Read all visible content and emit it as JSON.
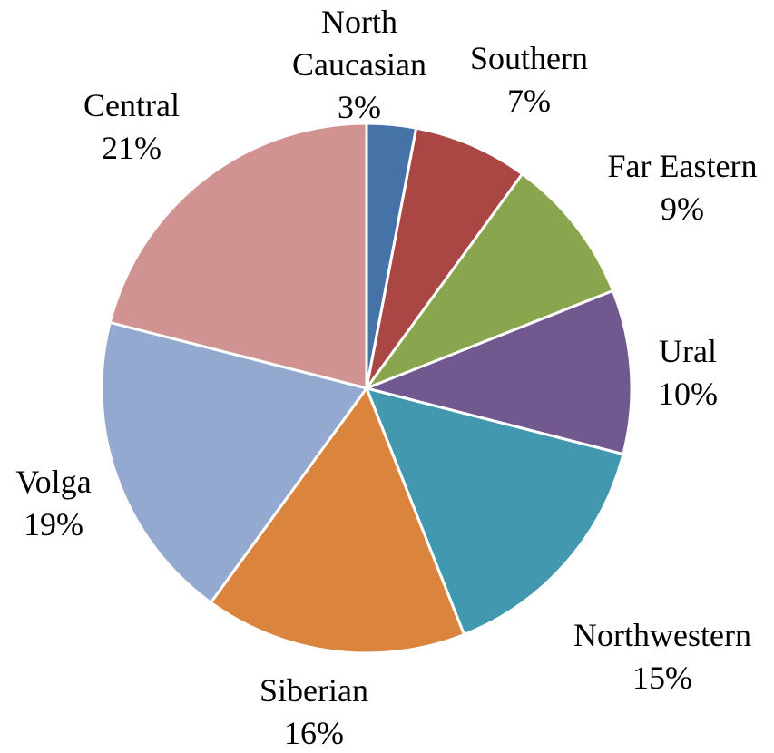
{
  "chart_data": {
    "type": "pie",
    "title": "",
    "slices": [
      {
        "label": "North Caucasian",
        "label_lines": [
          "North",
          "Caucasian"
        ],
        "value": 3,
        "display": "3%",
        "color": "#4572A7"
      },
      {
        "label": "Southern",
        "label_lines": [
          "Southern"
        ],
        "value": 7,
        "display": "7%",
        "color": "#AA4643"
      },
      {
        "label": "Far Eastern",
        "label_lines": [
          "Far Eastern"
        ],
        "value": 9,
        "display": "9%",
        "color": "#89A54E"
      },
      {
        "label": "Ural",
        "label_lines": [
          "Ural"
        ],
        "value": 10,
        "display": "10%",
        "color": "#71588F"
      },
      {
        "label": "Northwestern",
        "label_lines": [
          "Northwestern"
        ],
        "value": 15,
        "display": "15%",
        "color": "#4198AF"
      },
      {
        "label": "Siberian",
        "label_lines": [
          "Siberian"
        ],
        "value": 16,
        "display": "16%",
        "color": "#DB843D"
      },
      {
        "label": "Volga",
        "label_lines": [
          "Volga"
        ],
        "value": 19,
        "display": "19%",
        "color": "#93A9CF"
      },
      {
        "label": "Central",
        "label_lines": [
          "Central"
        ],
        "value": 21,
        "display": "21%",
        "color": "#D19392"
      }
    ],
    "start_angle": "12 o'clock",
    "direction": "clockwise",
    "legend": "none"
  }
}
